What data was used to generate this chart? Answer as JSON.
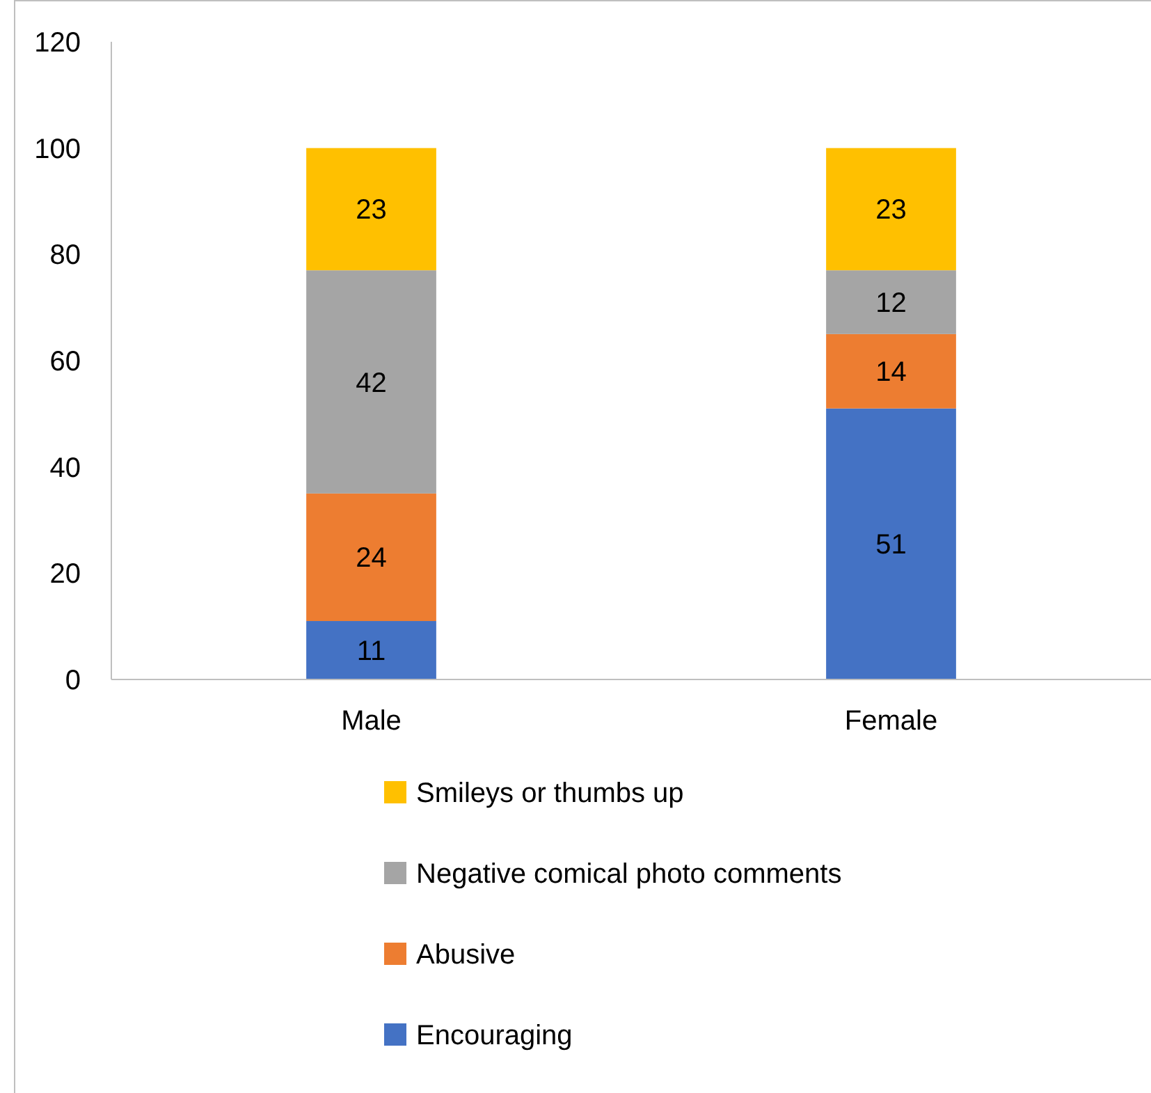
{
  "chart_data": {
    "type": "bar",
    "stacked": true,
    "categories": [
      "Male",
      "Female"
    ],
    "series": [
      {
        "name": "Encouraging",
        "color": "#4472c4",
        "values": [
          11,
          51
        ]
      },
      {
        "name": "Abusive",
        "color": "#ed7d31",
        "values": [
          24,
          14
        ]
      },
      {
        "name": "Negative comical photo comments",
        "color": "#a5a5a5",
        "values": [
          42,
          12
        ]
      },
      {
        "name": "Smileys or thumbs up",
        "color": "#ffc000",
        "values": [
          23,
          23
        ]
      }
    ],
    "ylim": [
      0,
      120
    ],
    "yticks": [
      0,
      20,
      40,
      60,
      80,
      100,
      120
    ],
    "data_labels": true,
    "legend": "bottom",
    "grid": false
  }
}
